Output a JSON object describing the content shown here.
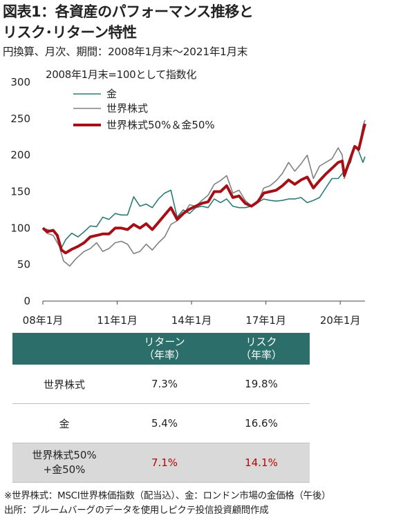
{
  "title": {
    "line1": "図表1：各資産のパフォーマンス推移と",
    "line2": "リスク･リターン特性"
  },
  "subtitle": "円換算、月次、期間：2008年1月末～2021年1月末",
  "note": "2008年1月末=100として指数化",
  "chart_data": {
    "type": "line",
    "x_tick_labels": [
      "08年1月",
      "11年1月",
      "14年1月",
      "17年1月",
      "20年1月"
    ],
    "x_tick_dates": [
      "2008-01",
      "2011-01",
      "2014-01",
      "2017-01",
      "2020-01"
    ],
    "x_range": [
      "2008-01",
      "2021-01"
    ],
    "ylim": [
      0,
      300
    ],
    "y_ticks": [
      0,
      50,
      100,
      150,
      200,
      250,
      300
    ],
    "legend_position": "top-left",
    "grid": false,
    "series": [
      {
        "name": "金",
        "color": "#2b7a78",
        "points": [
          [
            "2008-01",
            100
          ],
          [
            "2008-03",
            98
          ],
          [
            "2008-06",
            96
          ],
          [
            "2008-08",
            90
          ],
          [
            "2008-10",
            73
          ],
          [
            "2008-12",
            84
          ],
          [
            "2009-03",
            93
          ],
          [
            "2009-06",
            88
          ],
          [
            "2009-09",
            95
          ],
          [
            "2009-12",
            103
          ],
          [
            "2010-03",
            102
          ],
          [
            "2010-06",
            115
          ],
          [
            "2010-09",
            112
          ],
          [
            "2010-12",
            120
          ],
          [
            "2011-03",
            118
          ],
          [
            "2011-06",
            118
          ],
          [
            "2011-09",
            143
          ],
          [
            "2011-12",
            130
          ],
          [
            "2012-03",
            133
          ],
          [
            "2012-06",
            128
          ],
          [
            "2012-09",
            140
          ],
          [
            "2012-12",
            148
          ],
          [
            "2013-03",
            152
          ],
          [
            "2013-06",
            115
          ],
          [
            "2013-09",
            125
          ],
          [
            "2013-12",
            120
          ],
          [
            "2014-03",
            128
          ],
          [
            "2014-06",
            130
          ],
          [
            "2014-09",
            128
          ],
          [
            "2014-12",
            140
          ],
          [
            "2015-03",
            135
          ],
          [
            "2015-06",
            140
          ],
          [
            "2015-09",
            130
          ],
          [
            "2015-12",
            128
          ],
          [
            "2016-03",
            128
          ],
          [
            "2016-06",
            130
          ],
          [
            "2016-09",
            135
          ],
          [
            "2016-12",
            140
          ],
          [
            "2017-03",
            138
          ],
          [
            "2017-06",
            137
          ],
          [
            "2017-09",
            138
          ],
          [
            "2017-12",
            140
          ],
          [
            "2018-03",
            140
          ],
          [
            "2018-06",
            142
          ],
          [
            "2018-09",
            135
          ],
          [
            "2018-12",
            138
          ],
          [
            "2019-03",
            142
          ],
          [
            "2019-06",
            155
          ],
          [
            "2019-09",
            168
          ],
          [
            "2019-12",
            168
          ],
          [
            "2020-03",
            178
          ],
          [
            "2020-06",
            190
          ],
          [
            "2020-08",
            212
          ],
          [
            "2020-10",
            205
          ],
          [
            "2020-12",
            190
          ],
          [
            "2021-01",
            198
          ]
        ]
      },
      {
        "name": "世界株式",
        "color": "#808080",
        "points": [
          [
            "2008-01",
            100
          ],
          [
            "2008-03",
            93
          ],
          [
            "2008-06",
            90
          ],
          [
            "2008-09",
            75
          ],
          [
            "2008-11",
            55
          ],
          [
            "2009-02",
            48
          ],
          [
            "2009-05",
            58
          ],
          [
            "2009-09",
            68
          ],
          [
            "2009-12",
            72
          ],
          [
            "2010-03",
            80
          ],
          [
            "2010-06",
            68
          ],
          [
            "2010-09",
            72
          ],
          [
            "2010-12",
            80
          ],
          [
            "2011-03",
            82
          ],
          [
            "2011-06",
            78
          ],
          [
            "2011-09",
            65
          ],
          [
            "2011-12",
            68
          ],
          [
            "2012-03",
            78
          ],
          [
            "2012-06",
            70
          ],
          [
            "2012-09",
            80
          ],
          [
            "2012-12",
            88
          ],
          [
            "2013-03",
            105
          ],
          [
            "2013-06",
            110
          ],
          [
            "2013-09",
            118
          ],
          [
            "2013-12",
            132
          ],
          [
            "2014-03",
            130
          ],
          [
            "2014-06",
            138
          ],
          [
            "2014-09",
            145
          ],
          [
            "2014-12",
            160
          ],
          [
            "2015-03",
            165
          ],
          [
            "2015-06",
            172
          ],
          [
            "2015-09",
            148
          ],
          [
            "2015-12",
            152
          ],
          [
            "2016-03",
            138
          ],
          [
            "2016-06",
            130
          ],
          [
            "2016-09",
            135
          ],
          [
            "2016-12",
            155
          ],
          [
            "2017-03",
            158
          ],
          [
            "2017-06",
            165
          ],
          [
            "2017-09",
            175
          ],
          [
            "2017-12",
            190
          ],
          [
            "2018-03",
            178
          ],
          [
            "2018-06",
            188
          ],
          [
            "2018-09",
            200
          ],
          [
            "2018-12",
            168
          ],
          [
            "2019-03",
            185
          ],
          [
            "2019-06",
            190
          ],
          [
            "2019-09",
            195
          ],
          [
            "2019-12",
            210
          ],
          [
            "2020-02",
            200
          ],
          [
            "2020-03",
            168
          ],
          [
            "2020-05",
            190
          ],
          [
            "2020-08",
            210
          ],
          [
            "2020-10",
            208
          ],
          [
            "2020-12",
            240
          ],
          [
            "2021-01",
            248
          ]
        ]
      },
      {
        "name": "世界株式50%＆金50%",
        "color": "#a50f15",
        "points": [
          [
            "2008-01",
            100
          ],
          [
            "2008-03",
            95
          ],
          [
            "2008-06",
            97
          ],
          [
            "2008-08",
            90
          ],
          [
            "2008-10",
            70
          ],
          [
            "2008-12",
            66
          ],
          [
            "2009-03",
            71
          ],
          [
            "2009-06",
            75
          ],
          [
            "2009-09",
            80
          ],
          [
            "2009-12",
            88
          ],
          [
            "2010-03",
            90
          ],
          [
            "2010-06",
            92
          ],
          [
            "2010-09",
            92
          ],
          [
            "2010-12",
            100
          ],
          [
            "2011-03",
            100
          ],
          [
            "2011-06",
            98
          ],
          [
            "2011-09",
            105
          ],
          [
            "2011-12",
            100
          ],
          [
            "2012-03",
            106
          ],
          [
            "2012-06",
            98
          ],
          [
            "2012-09",
            108
          ],
          [
            "2012-12",
            118
          ],
          [
            "2013-03",
            128
          ],
          [
            "2013-06",
            112
          ],
          [
            "2013-09",
            120
          ],
          [
            "2013-12",
            126
          ],
          [
            "2014-03",
            130
          ],
          [
            "2014-06",
            134
          ],
          [
            "2014-09",
            136
          ],
          [
            "2014-12",
            150
          ],
          [
            "2015-03",
            150
          ],
          [
            "2015-06",
            158
          ],
          [
            "2015-09",
            142
          ],
          [
            "2015-12",
            144
          ],
          [
            "2016-03",
            134
          ],
          [
            "2016-06",
            130
          ],
          [
            "2016-09",
            136
          ],
          [
            "2016-12",
            148
          ],
          [
            "2017-03",
            150
          ],
          [
            "2017-06",
            152
          ],
          [
            "2017-09",
            158
          ],
          [
            "2017-12",
            166
          ],
          [
            "2018-03",
            160
          ],
          [
            "2018-06",
            166
          ],
          [
            "2018-09",
            170
          ],
          [
            "2018-12",
            155
          ],
          [
            "2019-03",
            165
          ],
          [
            "2019-06",
            174
          ],
          [
            "2019-09",
            182
          ],
          [
            "2019-12",
            190
          ],
          [
            "2020-02",
            192
          ],
          [
            "2020-03",
            172
          ],
          [
            "2020-05",
            188
          ],
          [
            "2020-08",
            212
          ],
          [
            "2020-10",
            208
          ],
          [
            "2020-12",
            232
          ],
          [
            "2021-01",
            243
          ]
        ]
      }
    ]
  },
  "table": {
    "headers": [
      "",
      "リターン\n（年率）",
      "リスク\n（年率）"
    ],
    "rows": [
      {
        "label": "世界株式",
        "return": "7.3%",
        "risk": "19.8%"
      },
      {
        "label": "金",
        "return": "5.4%",
        "risk": "16.6%"
      },
      {
        "label_line1": "世界株式50%",
        "label_line2": "+金50%",
        "return": "7.1%",
        "risk": "14.1%"
      }
    ],
    "header_color": "#2b6e6a",
    "highlight_color": "#c00000"
  },
  "footnotes": {
    "line1": "※世界株式：MSCI世界株価指数（配当込）、金：ロンドン市場の金価格（午後）",
    "line2": "出所：ブルームバーグのデータを使用しピクテ投信投資顧問作成"
  }
}
